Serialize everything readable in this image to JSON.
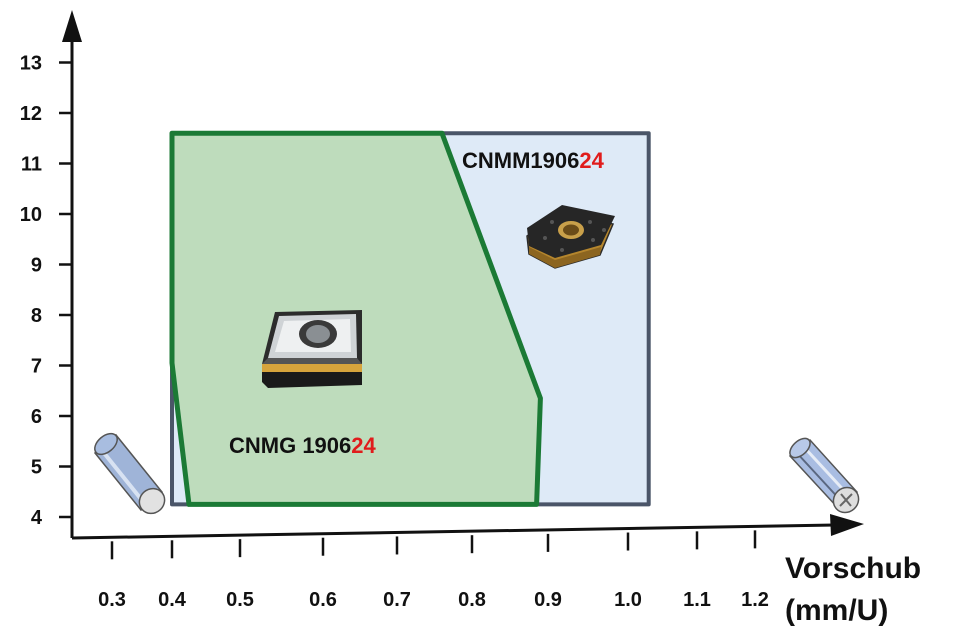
{
  "chart_data": {
    "type": "area",
    "xlabel": [
      "Vorschub",
      "(mm/U)"
    ],
    "ylabel": "",
    "x_ticks": [
      "0.3",
      "0.4",
      "0.5",
      "0.6",
      "0.7",
      "0.8",
      "0.9",
      "1.0",
      "1.1",
      "1.2"
    ],
    "y_ticks": [
      "4",
      "5",
      "6",
      "7",
      "8",
      "9",
      "10",
      "11",
      "12",
      "13"
    ],
    "xlim": [
      0.25,
      1.25
    ],
    "ylim": [
      3.75,
      13.5
    ],
    "grid": false,
    "series": [
      {
        "name": "CNMM190624",
        "name_base": "CNMM1906",
        "name_highlight": "24",
        "fill": "#deeaf7",
        "stroke": "#4a5568",
        "points": [
          [
            0.4,
            4.25
          ],
          [
            1.03,
            4.25
          ],
          [
            1.03,
            11.6
          ],
          [
            0.4,
            11.6
          ]
        ]
      },
      {
        "name": "CNMG 190624",
        "name_base": "CNMG 1906",
        "name_highlight": "24",
        "fill": "#bedcbc",
        "stroke": "#1b7a35",
        "points": [
          [
            0.4,
            11.6
          ],
          [
            0.76,
            11.6
          ],
          [
            0.89,
            6.35
          ],
          [
            0.885,
            4.25
          ],
          [
            0.425,
            4.25
          ],
          [
            0.4,
            7.05
          ]
        ]
      }
    ]
  },
  "colors": {
    "axis": "#111111",
    "highlight": "#e01c1c"
  },
  "icons": [
    "round-bar-icon",
    "cnmg-insert-icon",
    "cnmm-insert-icon",
    "grooved-bar-icon"
  ]
}
